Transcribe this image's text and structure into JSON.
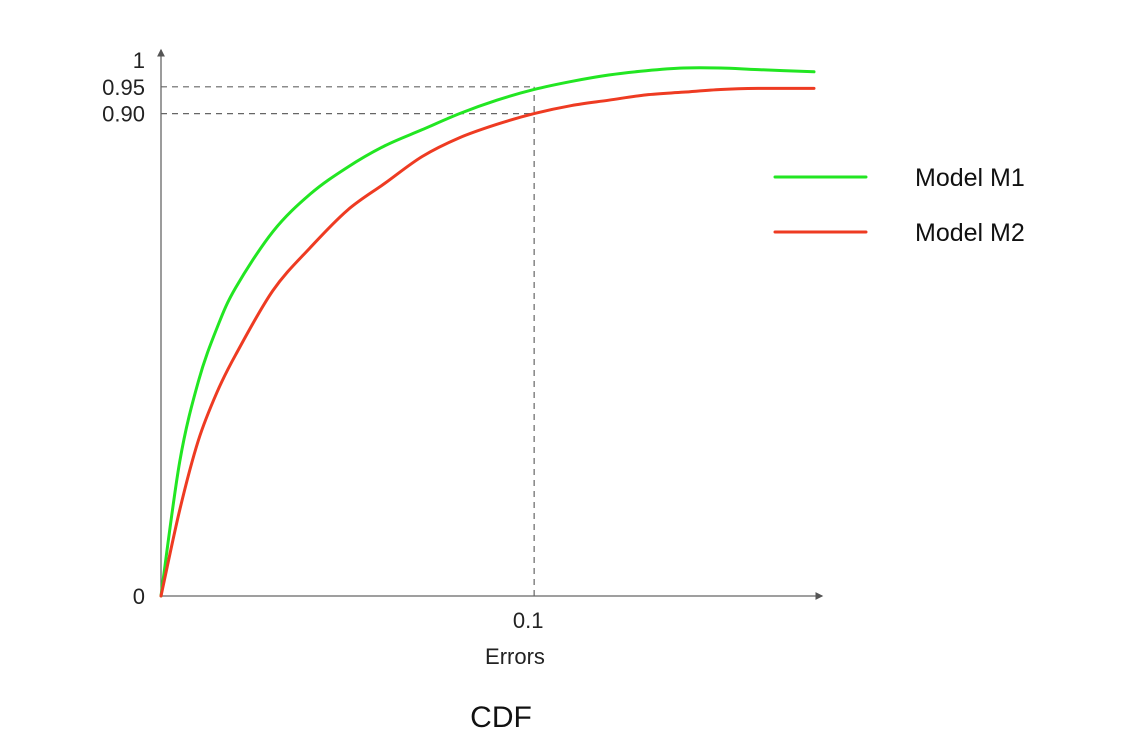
{
  "chart_data": {
    "type": "line",
    "title": "",
    "caption": "CDF",
    "xlabel": "Errors",
    "ylabel": "",
    "xlim": [
      0,
      0.175
    ],
    "ylim": [
      0,
      1
    ],
    "x_ticks": [
      {
        "value": 0.1,
        "label": "0.1"
      }
    ],
    "y_ticks": [
      {
        "value": 0,
        "label": "0"
      },
      {
        "value": 0.9,
        "label": "0.90"
      },
      {
        "value": 0.95,
        "label": "0.95"
      },
      {
        "value": 1,
        "label": "1"
      }
    ],
    "grid": false,
    "legend_position": "right",
    "series": [
      {
        "name": "Model M1",
        "color": "#22e622",
        "x": [
          0,
          0.005,
          0.01,
          0.015,
          0.02,
          0.03,
          0.04,
          0.05,
          0.06,
          0.07,
          0.08,
          0.09,
          0.1,
          0.11,
          0.12,
          0.13,
          0.14,
          0.15,
          0.16,
          0.175
        ],
        "y": [
          0,
          0.25,
          0.4,
          0.5,
          0.575,
          0.68,
          0.75,
          0.8,
          0.84,
          0.87,
          0.9,
          0.925,
          0.945,
          0.96,
          0.972,
          0.98,
          0.985,
          0.985,
          0.982,
          0.978
        ]
      },
      {
        "name": "Model M2",
        "color": "#ee3b22",
        "x": [
          0,
          0.005,
          0.01,
          0.015,
          0.02,
          0.03,
          0.04,
          0.05,
          0.06,
          0.07,
          0.08,
          0.09,
          0.1,
          0.11,
          0.12,
          0.13,
          0.14,
          0.15,
          0.16,
          0.175
        ],
        "y": [
          0,
          0.16,
          0.29,
          0.38,
          0.45,
          0.57,
          0.65,
          0.72,
          0.77,
          0.82,
          0.855,
          0.88,
          0.9,
          0.915,
          0.925,
          0.935,
          0.94,
          0.945,
          0.947,
          0.947
        ]
      }
    ],
    "reference_lines": [
      {
        "axis": "y",
        "value": 0.95,
        "x_end": 0.1,
        "style": "dashed"
      },
      {
        "axis": "y",
        "value": 0.9,
        "x_end": 0.1,
        "style": "dashed"
      },
      {
        "axis": "x",
        "value": 0.1,
        "y_end": 0.95,
        "style": "dashed"
      }
    ]
  }
}
